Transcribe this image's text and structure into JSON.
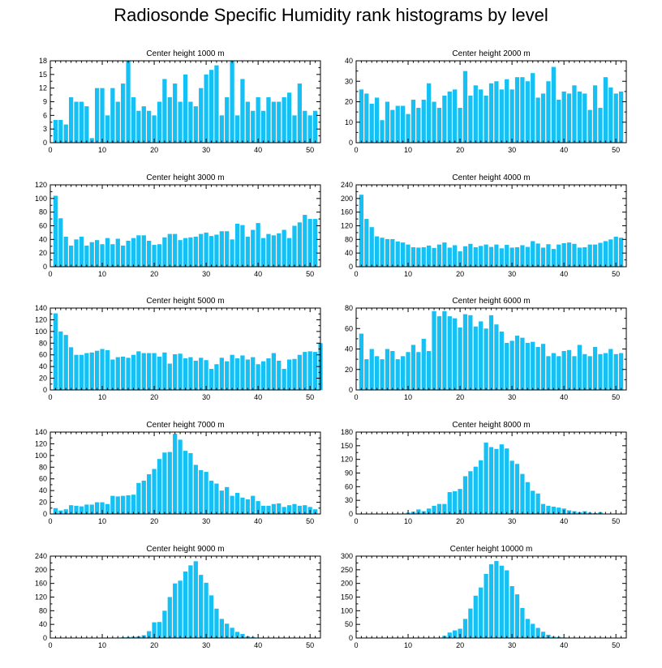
{
  "title": "Radiosonde Specific Humidity rank histograms by level",
  "bar_color": "#14c0f4",
  "chart_data": [
    {
      "type": "bar",
      "title": "Center height 1000 m",
      "xlim": [
        0,
        52
      ],
      "xticks": [
        0,
        10,
        20,
        30,
        40,
        50
      ],
      "ylim": [
        0,
        18
      ],
      "yticks": [
        0,
        3,
        6,
        9,
        12,
        15,
        18
      ],
      "values": [
        5,
        5,
        4,
        10,
        9,
        9,
        8,
        1,
        12,
        12,
        6,
        12,
        9,
        13,
        18,
        10,
        7,
        8,
        7,
        6,
        9,
        14,
        10,
        13,
        9,
        15,
        9,
        8,
        12,
        15,
        16,
        17,
        6,
        10,
        18,
        6,
        14,
        9,
        7,
        10,
        7,
        10,
        9,
        9,
        10,
        11,
        6,
        13,
        7,
        6,
        7
      ]
    },
    {
      "type": "bar",
      "title": "Center height 2000 m",
      "xlim": [
        0,
        52
      ],
      "xticks": [
        0,
        10,
        20,
        30,
        40,
        50
      ],
      "ylim": [
        0,
        40
      ],
      "yticks": [
        0,
        10,
        20,
        30,
        40
      ],
      "values": [
        26,
        24,
        19,
        22,
        11,
        20,
        16,
        18,
        18,
        14,
        21,
        17,
        21,
        29,
        20,
        17,
        23,
        25,
        26,
        17,
        35,
        23,
        28,
        26,
        23,
        29,
        30,
        26,
        31,
        26,
        32,
        32,
        30,
        34,
        22,
        24,
        30,
        37,
        21,
        25,
        24,
        28,
        25,
        24,
        16,
        28,
        17,
        32,
        27,
        24,
        25
      ]
    },
    {
      "type": "bar",
      "title": "Center height 3000 m",
      "xlim": [
        0,
        52
      ],
      "xticks": [
        0,
        10,
        20,
        30,
        40,
        50
      ],
      "ylim": [
        0,
        120
      ],
      "yticks": [
        0,
        20,
        40,
        60,
        80,
        100,
        120
      ],
      "values": [
        104,
        71,
        44,
        31,
        40,
        44,
        31,
        36,
        39,
        33,
        42,
        33,
        41,
        31,
        38,
        42,
        46,
        46,
        38,
        32,
        33,
        43,
        48,
        48,
        39,
        42,
        43,
        44,
        48,
        50,
        45,
        47,
        52,
        52,
        40,
        63,
        61,
        44,
        54,
        64,
        42,
        48,
        46,
        49,
        54,
        42,
        60,
        65,
        76,
        70,
        70
      ]
    },
    {
      "type": "bar",
      "title": "Center height 4000 m",
      "xlim": [
        0,
        52
      ],
      "xticks": [
        0,
        10,
        20,
        30,
        40,
        50
      ],
      "ylim": [
        0,
        240
      ],
      "yticks": [
        0,
        40,
        80,
        120,
        160,
        200,
        240
      ],
      "values": [
        211,
        140,
        116,
        89,
        85,
        81,
        81,
        74,
        71,
        65,
        57,
        56,
        57,
        62,
        55,
        65,
        71,
        56,
        63,
        45,
        60,
        67,
        57,
        61,
        65,
        58,
        65,
        54,
        64,
        56,
        57,
        63,
        58,
        75,
        68,
        56,
        66,
        52,
        65,
        69,
        71,
        67,
        56,
        57,
        65,
        65,
        70,
        75,
        80,
        88,
        85
      ]
    },
    {
      "type": "bar",
      "title": "Center height 5000 m",
      "xlim": [
        0,
        52
      ],
      "xticks": [
        0,
        10,
        20,
        30,
        40,
        50
      ],
      "ylim": [
        0,
        140
      ],
      "yticks": [
        0,
        20,
        40,
        60,
        80,
        100,
        120,
        140
      ],
      "values": [
        131,
        100,
        94,
        73,
        60,
        60,
        63,
        64,
        67,
        70,
        68,
        52,
        56,
        57,
        55,
        60,
        66,
        63,
        63,
        63,
        57,
        64,
        45,
        61,
        62,
        54,
        56,
        50,
        55,
        51,
        36,
        44,
        55,
        49,
        60,
        54,
        59,
        52,
        56,
        44,
        49,
        54,
        63,
        50,
        36,
        52,
        53,
        60,
        65,
        66,
        65,
        80
      ]
    },
    {
      "type": "bar",
      "title": "Center height 6000 m",
      "xlim": [
        0,
        52
      ],
      "xticks": [
        0,
        10,
        20,
        30,
        40,
        50
      ],
      "ylim": [
        0,
        80
      ],
      "yticks": [
        0,
        20,
        40,
        60,
        80
      ],
      "values": [
        55,
        30,
        40,
        33,
        30,
        40,
        38,
        30,
        33,
        37,
        44,
        37,
        50,
        38,
        77,
        72,
        77,
        72,
        70,
        61,
        74,
        73,
        62,
        67,
        60,
        73,
        64,
        57,
        46,
        48,
        53,
        51,
        46,
        47,
        42,
        45,
        33,
        36,
        33,
        38,
        39,
        33,
        44,
        35,
        33,
        42,
        35,
        36,
        40,
        35,
        36
      ]
    },
    {
      "type": "bar",
      "title": "Center height 7000 m",
      "xlim": [
        0,
        52
      ],
      "xticks": [
        0,
        10,
        20,
        30,
        40,
        50
      ],
      "ylim": [
        0,
        140
      ],
      "yticks": [
        0,
        20,
        40,
        60,
        80,
        100,
        120,
        140
      ],
      "values": [
        10,
        6,
        8,
        15,
        14,
        13,
        16,
        16,
        20,
        20,
        17,
        31,
        30,
        31,
        32,
        33,
        53,
        57,
        68,
        77,
        94,
        105,
        106,
        137,
        127,
        108,
        104,
        84,
        75,
        72,
        57,
        52,
        40,
        46,
        31,
        36,
        28,
        25,
        31,
        22,
        14,
        14,
        17,
        18,
        12,
        15,
        17,
        14,
        15,
        12,
        8
      ]
    },
    {
      "type": "bar",
      "title": "Center height 8000 m",
      "xlim": [
        0,
        52
      ],
      "xticks": [
        0,
        10,
        20,
        30,
        40,
        50
      ],
      "ylim": [
        0,
        180
      ],
      "yticks": [
        0,
        30,
        60,
        90,
        120,
        150,
        180
      ],
      "values": [
        0,
        0,
        0,
        0,
        0,
        0,
        1,
        0,
        1,
        3,
        5,
        10,
        6,
        12,
        18,
        22,
        22,
        48,
        50,
        55,
        83,
        94,
        104,
        118,
        157,
        147,
        143,
        153,
        144,
        117,
        110,
        88,
        70,
        51,
        45,
        22,
        18,
        16,
        14,
        12,
        8,
        6,
        4,
        6,
        3,
        2,
        4,
        0,
        0,
        0,
        0
      ]
    },
    {
      "type": "bar",
      "title": "Center height 9000 m",
      "xlim": [
        0,
        52
      ],
      "xticks": [
        0,
        10,
        20,
        30,
        40,
        50
      ],
      "ylim": [
        0,
        240
      ],
      "yticks": [
        0,
        40,
        80,
        120,
        160,
        200,
        240
      ],
      "values": [
        0,
        0,
        0,
        0,
        0,
        0,
        0,
        0,
        0,
        0,
        0,
        0,
        1,
        2,
        3,
        4,
        5,
        8,
        20,
        46,
        47,
        80,
        120,
        160,
        168,
        195,
        213,
        225,
        185,
        162,
        125,
        86,
        56,
        42,
        30,
        18,
        12,
        5,
        3,
        1,
        1,
        0,
        0,
        0,
        0,
        1,
        0,
        0,
        0,
        0,
        0
      ]
    },
    {
      "type": "bar",
      "title": "Center height 10000 m",
      "xlim": [
        0,
        52
      ],
      "xticks": [
        0,
        10,
        20,
        30,
        40,
        50
      ],
      "ylim": [
        0,
        300
      ],
      "yticks": [
        0,
        50,
        100,
        150,
        200,
        250,
        300
      ],
      "values": [
        0,
        0,
        0,
        0,
        0,
        0,
        0,
        0,
        0,
        0,
        0,
        0,
        0,
        0,
        0,
        0,
        8,
        20,
        28,
        34,
        70,
        108,
        155,
        185,
        235,
        270,
        282,
        265,
        248,
        190,
        160,
        110,
        70,
        52,
        37,
        23,
        12,
        5,
        4,
        2,
        1,
        0,
        0,
        0,
        0,
        0,
        0,
        0,
        0,
        0,
        0
      ]
    }
  ]
}
